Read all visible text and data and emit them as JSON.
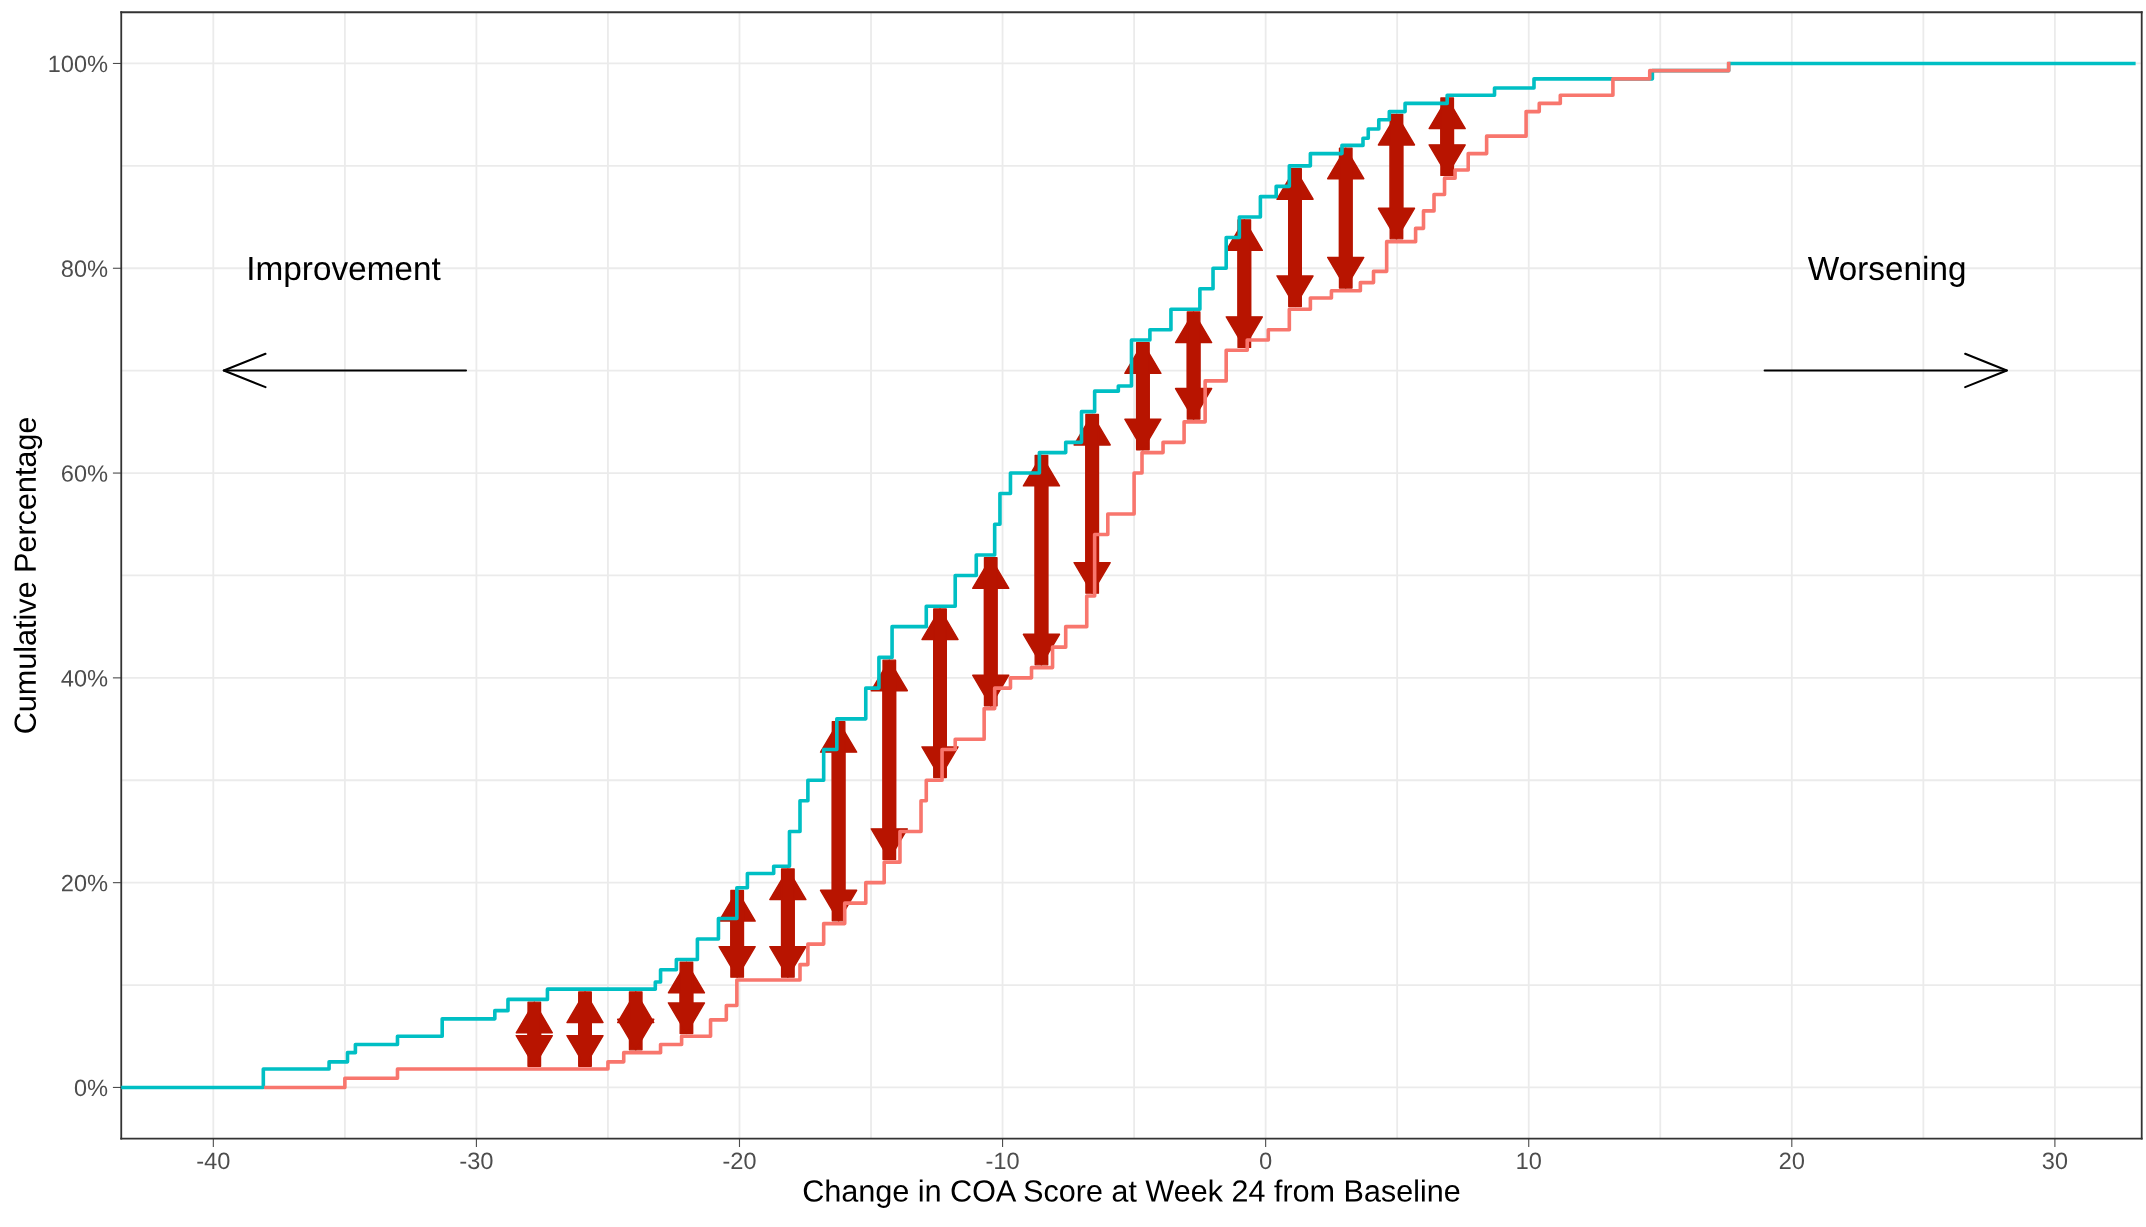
{
  "chart_data": {
    "type": "step",
    "xlabel": "Change in COA Score at Week 24 from Baseline",
    "ylabel": "Cumulative Percentage",
    "xlim": [
      -43.5,
      33.3
    ],
    "ylim": [
      -5,
      105
    ],
    "xticks": [
      -40,
      -30,
      -20,
      -10,
      0,
      10,
      20,
      30
    ],
    "yticks": [
      {
        "value": 0,
        "label": "0%"
      },
      {
        "value": 20,
        "label": "20%"
      },
      {
        "value": 40,
        "label": "40%"
      },
      {
        "value": 60,
        "label": "60%"
      },
      {
        "value": 80,
        "label": "80%"
      },
      {
        "value": 100,
        "label": "100%"
      }
    ],
    "grid": true,
    "legend": false,
    "annotations": [
      "Improvement",
      "Worsening"
    ],
    "series": [
      {
        "color": "#00bfc4",
        "x": [
          -43.5,
          -38.1,
          -35.6,
          -34.9,
          -34.6,
          -33.0,
          -31.3,
          -29.3,
          -28.8,
          -27.3,
          -23.2,
          -23.0,
          -22.4,
          -21.6,
          -20.8,
          -20.1,
          -19.7,
          -18.7,
          -18.1,
          -17.7,
          -17.4,
          -16.8,
          -16.3,
          -15.2,
          -14.7,
          -14.2,
          -12.9,
          -11.8,
          -11.0,
          -10.3,
          -10.1,
          -9.7,
          -8.6,
          -7.6,
          -7.0,
          -6.5,
          -5.6,
          -5.1,
          -4.4,
          -3.6,
          -2.5,
          -2.0,
          -1.5,
          -1.0,
          -0.2,
          0.4,
          0.9,
          1.7,
          2.9,
          3.7,
          3.9,
          4.3,
          4.7,
          5.3,
          6.9,
          8.7,
          10.2,
          14.7,
          17.6,
          33.0
        ],
        "values": [
          0,
          1.8,
          2.5,
          3.4,
          4.2,
          5.0,
          6.7,
          7.5,
          8.6,
          9.6,
          10.3,
          11.5,
          12.5,
          14.5,
          16.5,
          19.5,
          20.9,
          21.6,
          25,
          28,
          30,
          33,
          36,
          39,
          42,
          45,
          47,
          50,
          52,
          55,
          58,
          60,
          62,
          63,
          66,
          68,
          68.5,
          73,
          74,
          76,
          78,
          80,
          83,
          85,
          87,
          88,
          90,
          91.2,
          92.0,
          92.7,
          93.6,
          94.5,
          95.3,
          96.1,
          96.9,
          97.6,
          98.5,
          99.3,
          100,
          100
        ]
      },
      {
        "color": "#f8766d",
        "x": [
          -38.0,
          -35.0,
          -33.0,
          -25.0,
          -24.4,
          -23.0,
          -22.2,
          -21.1,
          -20.5,
          -20.1,
          -17.7,
          -17.4,
          -16.8,
          -16.0,
          -15.2,
          -14.5,
          -13.9,
          -13.1,
          -12.9,
          -12.3,
          -11.8,
          -10.7,
          -10.3,
          -9.7,
          -8.9,
          -8.1,
          -7.6,
          -6.8,
          -6.5,
          -6.0,
          -5.0,
          -4.7,
          -3.9,
          -3.1,
          -2.3,
          -1.5,
          -0.7,
          0.1,
          0.9,
          1.7,
          2.5,
          3.6,
          4.1,
          4.6,
          5.7,
          6.0,
          6.4,
          6.8,
          7.2,
          7.7,
          7.8,
          8.4,
          9.9,
          10.4,
          11.2,
          13.2,
          14.6,
          17.6
        ],
        "values": [
          0,
          0.9,
          1.8,
          2.5,
          3.4,
          4.2,
          5.0,
          6.6,
          8.0,
          10.5,
          12,
          14,
          16,
          18,
          20,
          22,
          25,
          28,
          30,
          33,
          34,
          37,
          39,
          40,
          41,
          43,
          45,
          48,
          54,
          56,
          60,
          62,
          63,
          65,
          69,
          72,
          73,
          74,
          76,
          77.1,
          77.8,
          78.6,
          79.7,
          82.6,
          83.9,
          85.6,
          87.2,
          88.8,
          89.6,
          91.2,
          91.2,
          92.9,
          95.3,
          96.1,
          96.9,
          98.5,
          99.3,
          100
        ]
      }
    ]
  }
}
